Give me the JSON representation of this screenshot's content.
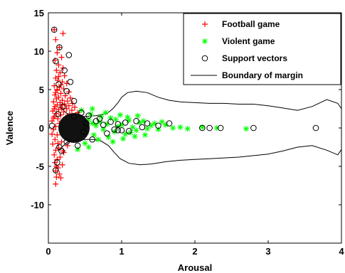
{
  "chart_data": {
    "type": "scatter",
    "title": "",
    "xlabel": "Arousal",
    "ylabel": "Valence",
    "xlim": [
      0,
      4
    ],
    "ylim": [
      -15,
      15
    ],
    "x_ticks": [
      0,
      1,
      2,
      3,
      4
    ],
    "y_ticks": [
      -10,
      -5,
      0,
      5,
      10,
      15
    ],
    "x_tick_labels": [
      "0",
      "1",
      "2",
      "3",
      "4"
    ],
    "y_tick_labels": [
      "-10",
      "-5",
      "0",
      "5",
      "10",
      "15"
    ],
    "grid": false,
    "legend_position": "top-right",
    "legend": [
      {
        "label": "Football game",
        "marker": "plus",
        "color": "#ff0000"
      },
      {
        "label": "Violent game",
        "marker": "asterisk",
        "color": "#00ff00"
      },
      {
        "label": "Support vectors",
        "marker": "circle",
        "color": "#000000"
      },
      {
        "label": "Boundary of margin",
        "marker": "line",
        "color": "#000000"
      }
    ],
    "series": [
      {
        "name": "Football game",
        "marker": "plus",
        "color": "#ff0000",
        "points": [
          [
            0.08,
            12.8
          ],
          [
            0.2,
            12.3
          ],
          [
            0.1,
            11.5
          ],
          [
            0.15,
            10.5
          ],
          [
            0.12,
            9.8
          ],
          [
            0.18,
            9.2
          ],
          [
            0.09,
            8.8
          ],
          [
            0.14,
            8.2
          ],
          [
            0.2,
            7.8
          ],
          [
            0.11,
            7.5
          ],
          [
            0.16,
            7.2
          ],
          [
            0.22,
            6.8
          ],
          [
            0.1,
            6.5
          ],
          [
            0.13,
            6.2
          ],
          [
            0.19,
            6.0
          ],
          [
            0.25,
            5.8
          ],
          [
            0.08,
            5.5
          ],
          [
            0.15,
            5.3
          ],
          [
            0.21,
            5.1
          ],
          [
            0.12,
            4.9
          ],
          [
            0.28,
            4.7
          ],
          [
            0.17,
            4.5
          ],
          [
            0.09,
            4.3
          ],
          [
            0.23,
            4.2
          ],
          [
            0.14,
            4.0
          ],
          [
            0.3,
            3.9
          ],
          [
            0.11,
            3.8
          ],
          [
            0.19,
            3.6
          ],
          [
            0.26,
            3.5
          ],
          [
            0.07,
            3.4
          ],
          [
            0.16,
            3.3
          ],
          [
            0.33,
            3.2
          ],
          [
            0.22,
            3.1
          ],
          [
            0.12,
            3.0
          ],
          [
            0.28,
            2.9
          ],
          [
            0.09,
            2.8
          ],
          [
            0.36,
            2.7
          ],
          [
            0.18,
            2.6
          ],
          [
            0.25,
            2.5
          ],
          [
            0.14,
            2.4
          ],
          [
            0.32,
            2.3
          ],
          [
            0.06,
            2.2
          ],
          [
            0.21,
            2.1
          ],
          [
            0.4,
            2.0
          ],
          [
            0.11,
            1.9
          ],
          [
            0.29,
            1.8
          ],
          [
            0.17,
            1.7
          ],
          [
            0.35,
            1.6
          ],
          [
            0.08,
            1.5
          ],
          [
            0.24,
            1.4
          ],
          [
            0.43,
            1.3
          ],
          [
            0.13,
            1.2
          ],
          [
            0.31,
            1.1
          ],
          [
            0.2,
            1.0
          ],
          [
            0.05,
            0.9
          ],
          [
            0.38,
            0.8
          ],
          [
            0.15,
            0.6
          ],
          [
            0.27,
            0.4
          ],
          [
            0.1,
            0.2
          ],
          [
            0.45,
            0.1
          ],
          [
            0.07,
            -0.2
          ],
          [
            0.22,
            -0.5
          ],
          [
            0.12,
            -0.9
          ],
          [
            0.34,
            -1.2
          ],
          [
            0.09,
            -1.5
          ],
          [
            0.18,
            -1.8
          ],
          [
            0.06,
            -2.1
          ],
          [
            0.26,
            -2.3
          ],
          [
            0.14,
            -2.6
          ],
          [
            0.1,
            -2.9
          ],
          [
            0.21,
            -3.2
          ],
          [
            0.08,
            -3.5
          ],
          [
            0.16,
            -3.8
          ],
          [
            0.12,
            -4.1
          ],
          [
            0.09,
            -4.5
          ],
          [
            0.19,
            -4.8
          ],
          [
            0.13,
            -5.2
          ],
          [
            0.1,
            -5.6
          ],
          [
            0.15,
            -6.0
          ],
          [
            0.11,
            -6.4
          ],
          [
            0.17,
            -6.5
          ],
          [
            0.1,
            -7.3
          ],
          [
            0.13,
            -2.0
          ],
          [
            0.24,
            -1.0
          ],
          [
            0.07,
            1.3
          ],
          [
            0.19,
            3.0
          ],
          [
            0.12,
            5.0
          ],
          [
            0.1,
            4.6
          ],
          [
            0.14,
            6.7
          ],
          [
            0.17,
            5.6
          ],
          [
            0.08,
            2.5
          ],
          [
            0.26,
            0.7
          ],
          [
            0.05,
            -0.8
          ],
          [
            0.2,
            -3.0
          ],
          [
            0.11,
            -5.0
          ]
        ]
      },
      {
        "name": "Violent game",
        "marker": "asterisk",
        "color": "#00ff00",
        "points": [
          [
            0.5,
            0.9
          ],
          [
            0.55,
            1.1
          ],
          [
            0.6,
            0.6
          ],
          [
            0.65,
            0.3
          ],
          [
            0.7,
            0.8
          ],
          [
            0.75,
            -0.2
          ],
          [
            0.8,
            0.5
          ],
          [
            0.85,
            1.3
          ],
          [
            0.9,
            -0.5
          ],
          [
            0.95,
            0.2
          ],
          [
            1.0,
            0.4
          ],
          [
            1.05,
            -0.8
          ],
          [
            1.1,
            1.0
          ],
          [
            1.15,
            0.1
          ],
          [
            1.2,
            -0.3
          ],
          [
            1.25,
            0.7
          ],
          [
            1.3,
            0.9
          ],
          [
            1.35,
            -0.1
          ],
          [
            1.4,
            0.3
          ],
          [
            1.45,
            0.6
          ],
          [
            1.5,
            -0.2
          ],
          [
            1.55,
            0.8
          ],
          [
            1.6,
            0.4
          ],
          [
            1.7,
            0.0
          ],
          [
            1.8,
            0.1
          ],
          [
            1.9,
            -0.1
          ],
          [
            2.1,
            0.1
          ],
          [
            2.3,
            0.0
          ],
          [
            2.7,
            -0.1
          ],
          [
            0.52,
            -0.4
          ],
          [
            0.62,
            -0.9
          ],
          [
            0.72,
            1.5
          ],
          [
            0.82,
            -1.2
          ],
          [
            0.92,
            1.1
          ],
          [
            1.02,
            -1.4
          ],
          [
            1.12,
            -0.6
          ],
          [
            1.22,
            1.6
          ],
          [
            1.32,
            -0.9
          ],
          [
            0.58,
            1.8
          ],
          [
            0.68,
            -1.5
          ],
          [
            0.78,
            2.0
          ],
          [
            0.88,
            -1.8
          ],
          [
            0.98,
            1.7
          ],
          [
            1.08,
            1.4
          ],
          [
            1.18,
            -1.1
          ],
          [
            0.45,
            2.3
          ],
          [
            0.5,
            -2.0
          ],
          [
            0.55,
            -2.5
          ],
          [
            0.6,
            2.5
          ],
          [
            0.4,
            -2.8
          ]
        ]
      },
      {
        "name": "Support vectors",
        "marker": "circle",
        "color": "#000000",
        "points": [
          [
            0.08,
            12.8
          ],
          [
            0.15,
            10.5
          ],
          [
            0.28,
            9.5
          ],
          [
            0.1,
            8.7
          ],
          [
            0.22,
            7.5
          ],
          [
            0.3,
            6.0
          ],
          [
            0.14,
            5.7
          ],
          [
            0.25,
            4.8
          ],
          [
            0.35,
            3.5
          ],
          [
            0.2,
            2.8
          ],
          [
            0.45,
            2.0
          ],
          [
            0.55,
            1.6
          ],
          [
            0.7,
            1.2
          ],
          [
            0.85,
            0.8
          ],
          [
            0.95,
            0.5
          ],
          [
            1.05,
            0.7
          ],
          [
            1.2,
            0.9
          ],
          [
            1.35,
            0.6
          ],
          [
            1.5,
            0.3
          ],
          [
            1.65,
            0.6
          ],
          [
            2.1,
            0.0
          ],
          [
            2.2,
            0.0
          ],
          [
            2.35,
            0.0
          ],
          [
            2.8,
            0.0
          ],
          [
            3.65,
            0.0
          ],
          [
            0.12,
            -4.5
          ],
          [
            0.1,
            -5.5
          ],
          [
            0.18,
            -3.0
          ],
          [
            0.4,
            -2.3
          ],
          [
            0.6,
            -1.5
          ],
          [
            0.8,
            -0.7
          ],
          [
            1.0,
            -0.3
          ],
          [
            0.25,
            -1.8
          ],
          [
            0.15,
            -2.5
          ],
          [
            0.05,
            0.3
          ],
          [
            0.9,
            -0.2
          ],
          [
            0.75,
            0.4
          ],
          [
            1.28,
            0.1
          ],
          [
            0.35,
            1.5
          ],
          [
            0.48,
            -0.5
          ],
          [
            1.1,
            -0.4
          ],
          [
            0.65,
            0.9
          ],
          [
            0.95,
            -0.3
          ],
          [
            0.52,
            0.6
          ],
          [
            0.13,
            1.8
          ]
        ]
      },
      {
        "name": "Boundary of margin",
        "marker": "line",
        "color": "#000000",
        "outer": [
          [
            0.15,
            2.8
          ],
          [
            0.25,
            1.9
          ],
          [
            0.38,
            1.6
          ],
          [
            0.5,
            1.5
          ],
          [
            0.65,
            1.6
          ],
          [
            0.8,
            1.9
          ],
          [
            0.88,
            2.5
          ],
          [
            0.95,
            3.3
          ],
          [
            1.0,
            4.0
          ],
          [
            1.08,
            4.6
          ],
          [
            1.2,
            4.8
          ],
          [
            1.35,
            4.6
          ],
          [
            1.5,
            4.0
          ],
          [
            1.65,
            3.6
          ],
          [
            1.8,
            3.4
          ],
          [
            2.0,
            3.3
          ],
          [
            2.2,
            3.2
          ],
          [
            2.4,
            3.2
          ],
          [
            2.6,
            3.1
          ],
          [
            2.8,
            3.1
          ],
          [
            3.0,
            2.9
          ],
          [
            3.2,
            2.6
          ],
          [
            3.4,
            2.3
          ],
          [
            3.6,
            2.8
          ],
          [
            3.8,
            3.7
          ],
          [
            3.95,
            3.2
          ],
          [
            4.0,
            2.5
          ]
        ],
        "inner": [
          [
            0.15,
            -2.8
          ],
          [
            0.25,
            -1.9
          ],
          [
            0.38,
            -1.6
          ],
          [
            0.5,
            -1.5
          ],
          [
            0.62,
            -1.5
          ],
          [
            0.72,
            -1.7
          ],
          [
            0.82,
            -2.3
          ],
          [
            0.9,
            -3.2
          ],
          [
            0.98,
            -4.0
          ],
          [
            1.1,
            -4.6
          ],
          [
            1.25,
            -4.8
          ],
          [
            1.4,
            -4.7
          ],
          [
            1.6,
            -4.4
          ],
          [
            1.8,
            -4.2
          ],
          [
            2.0,
            -4.1
          ],
          [
            2.2,
            -4.0
          ],
          [
            2.4,
            -3.9
          ],
          [
            2.6,
            -3.8
          ],
          [
            2.8,
            -3.6
          ],
          [
            3.0,
            -3.4
          ],
          [
            3.2,
            -3.0
          ],
          [
            3.4,
            -2.5
          ],
          [
            3.6,
            -2.3
          ],
          [
            3.8,
            -2.9
          ],
          [
            3.95,
            -3.5
          ],
          [
            4.0,
            -2.8
          ]
        ]
      }
    ]
  }
}
